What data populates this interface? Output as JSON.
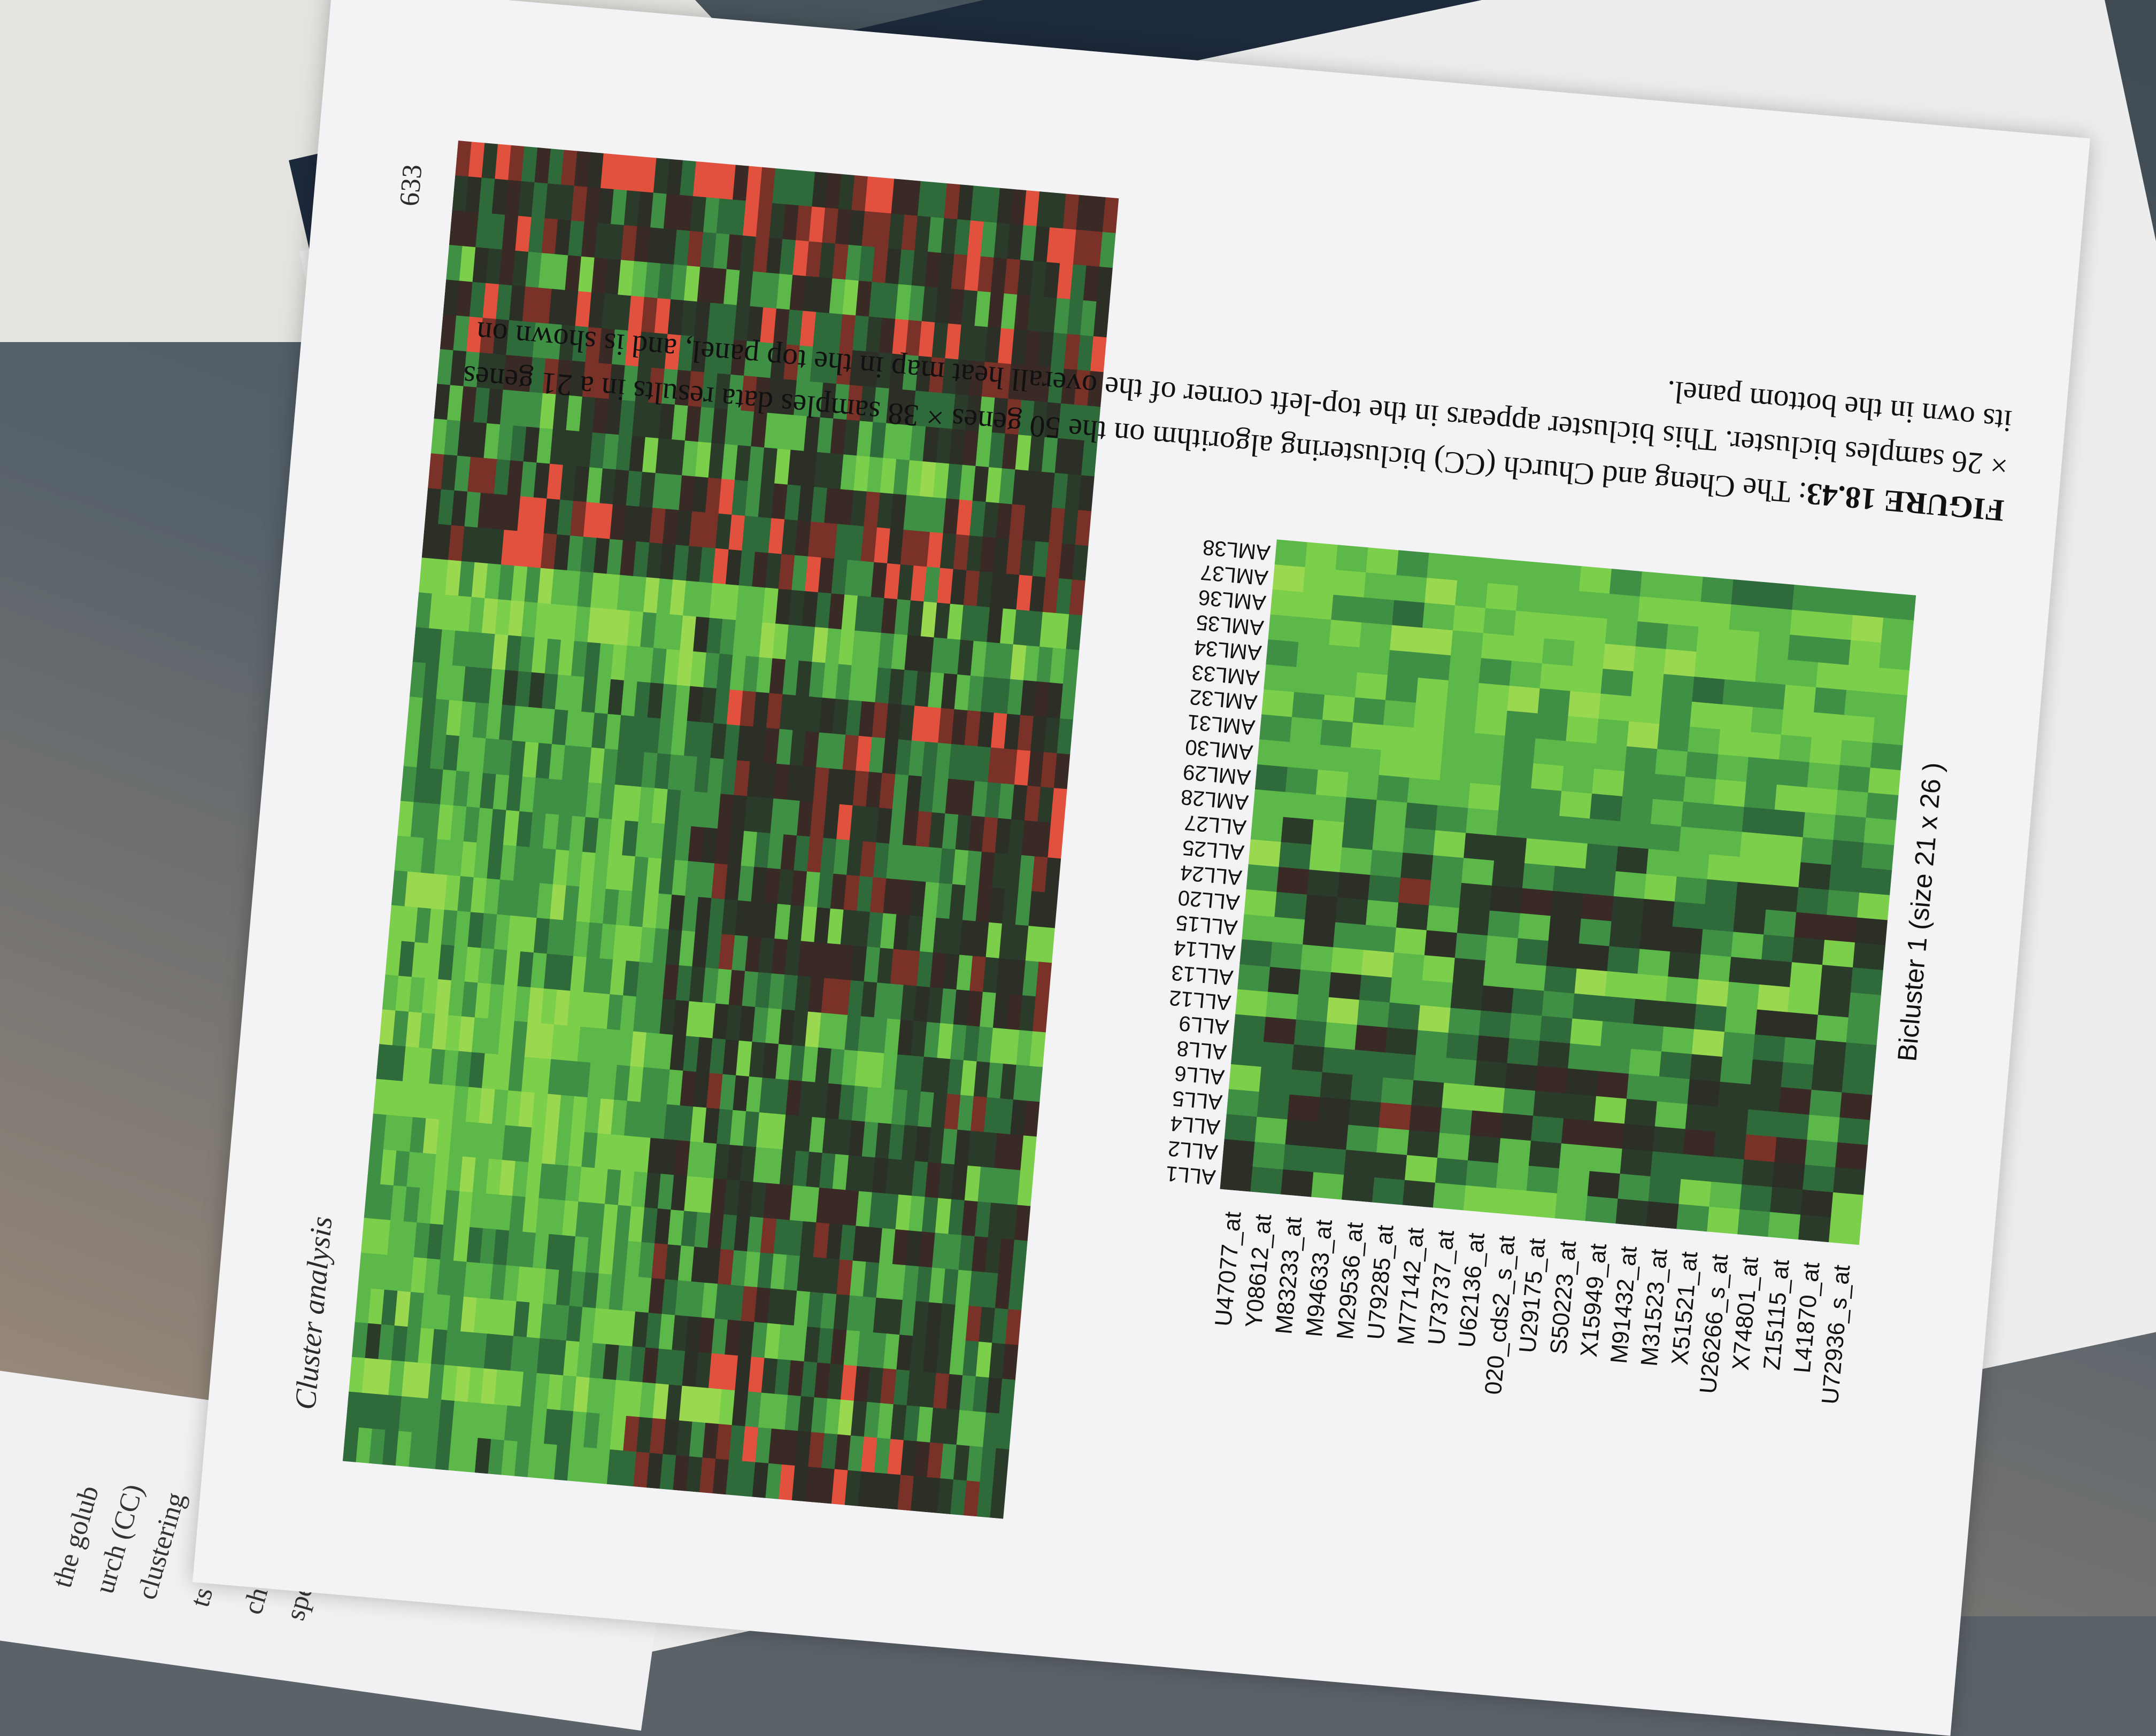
{
  "page": {
    "running_head": "Cluster analysis",
    "page_number": "633"
  },
  "figure": {
    "row_labels": [
      "U47077_at",
      "Y08612_at",
      "M83233_at",
      "M94633_at",
      "M29536_at",
      "U79285_at",
      "M77142_at",
      "U73737_at",
      "U62136_at",
      "020_cds2_s_at",
      "U29175_at",
      "S50223_at",
      "X15949_at",
      "M91432_at",
      "M31523_at",
      "X51521_at",
      "U26266_s_at",
      "X74801_at",
      "Z15115_at",
      "L41870_at",
      "U72936_s_at"
    ],
    "column_labels": [
      "ALL1",
      "ALL2",
      "ALL4",
      "ALL5",
      "ALL6",
      "ALL8",
      "ALL9",
      "ALL12",
      "ALL13",
      "ALL14",
      "ALL15",
      "ALL20",
      "ALL24",
      "ALL25",
      "ALL27",
      "AML28",
      "AML29",
      "AML30",
      "AML31",
      "AML32",
      "AML33",
      "AML34",
      "AML35",
      "AML36",
      "AML37",
      "AML38"
    ],
    "bicluster_title": "Bicluster  1  (size  21 x 26 )",
    "colors": {
      "low": "#7ccf4a",
      "mid": "#2b2f26",
      "high": "#e2513e"
    }
  },
  "caption": {
    "label": "FIGURE 18.43",
    "text": ": The Cheng and Church (CC) biclustering algorithm on the 50 genes × 38 samples data results in a 21 genes × 26 samples bicluster. This bicluster appears in the top-left corner of the overall heat map in the top panel, and is shown on its own in the bottom panel."
  },
  "left_page": {
    "fragments": [
      "the golub",
      "urch (CC)",
      "clustering",
      "ts a num-",
      "ch can be",
      "specifies"
    ]
  }
}
